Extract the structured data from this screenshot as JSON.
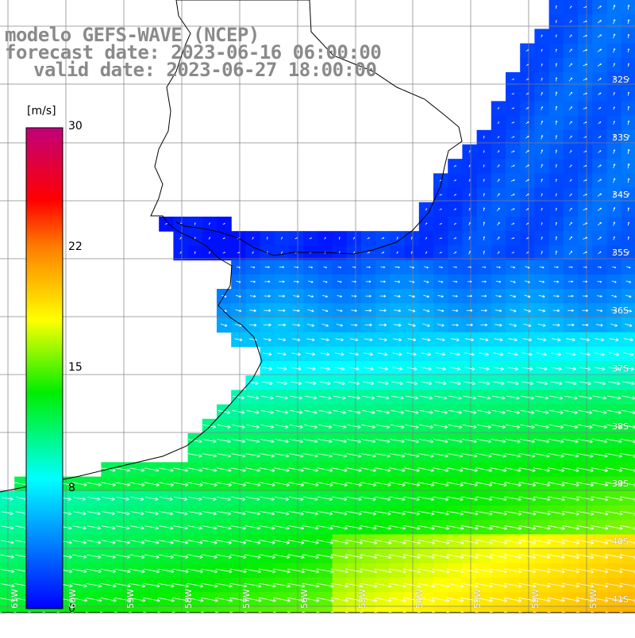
{
  "title": {
    "line1": "modelo GEFS-WAVE (NCEP)",
    "line2": "forecast date: 2023-06-16 06:00:00",
    "line3": "valid date: 2023-06-27 18:00:00"
  },
  "colorbar": {
    "unit": "[m/s]",
    "ticks": [
      "30",
      "22",
      "15",
      "8",
      "0"
    ],
    "min": 0,
    "max": 30,
    "colors": [
      "#0000ff",
      "#00ffff",
      "#00ff00",
      "#ffff00",
      "#ff0000",
      "#c0007a"
    ]
  },
  "map": {
    "lat_labels": [
      "32S",
      "33S",
      "34S",
      "35S",
      "36S",
      "37S",
      "38S",
      "39S",
      "40S",
      "41S"
    ],
    "lon_labels": [
      "61W",
      "60W",
      "59W",
      "58W",
      "57W",
      "56W",
      "55W",
      "54W",
      "53W",
      "52W",
      "51W"
    ],
    "land_color": "#ffffff",
    "grid_color": "#808080",
    "coast_color": "#000000",
    "arrow_color": "#ffffff"
  }
}
